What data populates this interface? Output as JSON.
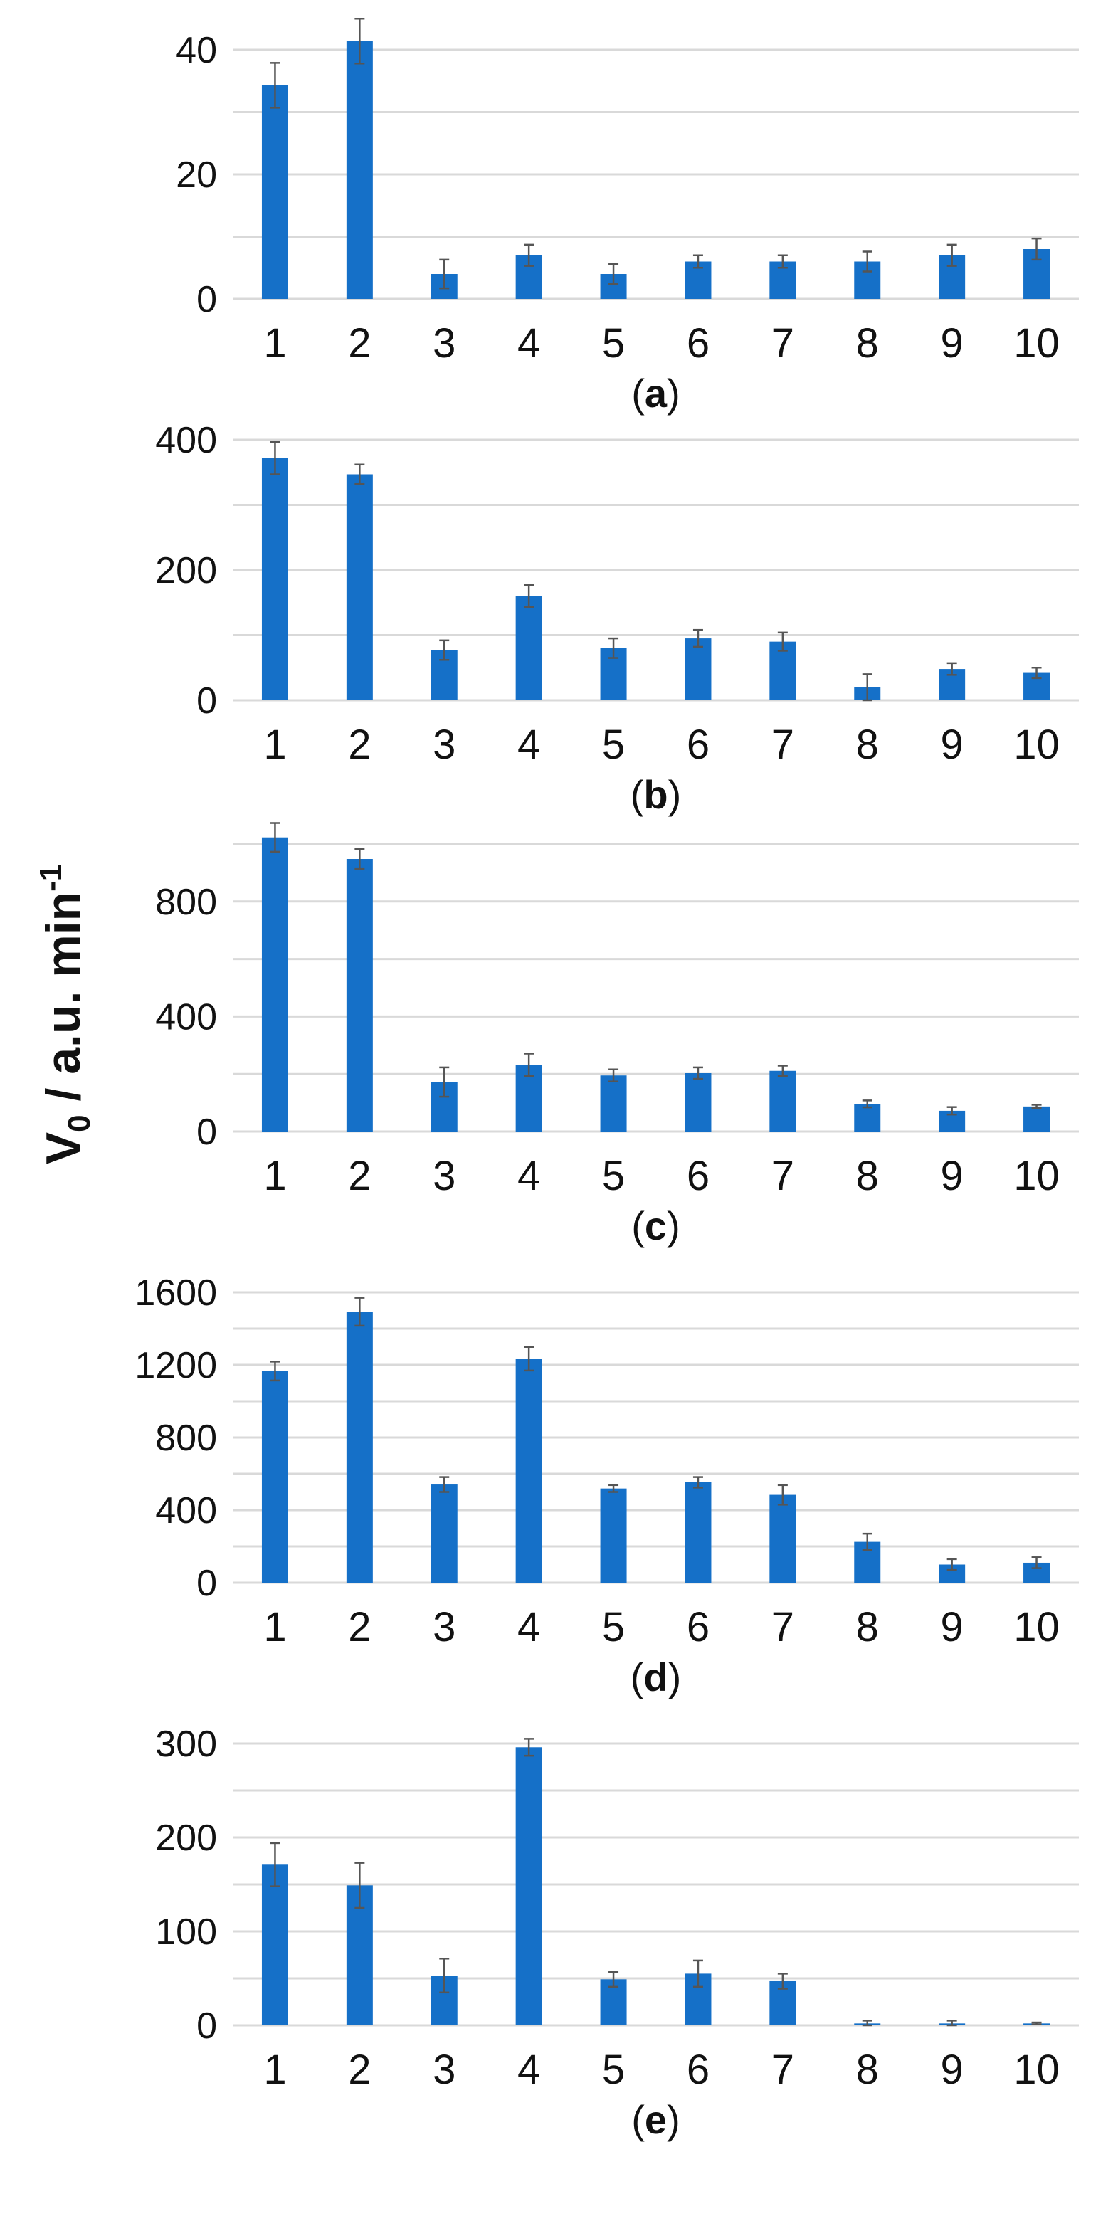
{
  "chart_data": {
    "type": "bar",
    "ylabel": {
      "main": "V",
      "sub": "0",
      "rest": " / a.u. min",
      "sup": "-1"
    },
    "bar_color": "#1570C8",
    "grid_color": "#D9D9D9",
    "error_bar_color": "#555555",
    "grid": true,
    "categories": [
      "1",
      "2",
      "3",
      "4",
      "5",
      "6",
      "7",
      "8",
      "9",
      "10"
    ],
    "panels": [
      {
        "label_open": "(",
        "label": "a",
        "label_close": ")",
        "ylim": [
          0,
          40
        ],
        "grid_step": 10,
        "ticks": [
          0,
          20,
          40
        ],
        "values": [
          34.3,
          41.4,
          4.0,
          7.0,
          4.0,
          6.0,
          6.0,
          6.0,
          7.0,
          8.0
        ],
        "errors": [
          3.6,
          3.6,
          2.3,
          1.7,
          1.6,
          1.0,
          1.0,
          1.6,
          1.7,
          1.7
        ]
      },
      {
        "label_open": "(",
        "label": "b",
        "label_close": ")",
        "ylim": [
          0,
          400
        ],
        "grid_step": 100,
        "ticks": [
          0,
          200,
          400
        ],
        "values": [
          372,
          347,
          77,
          160,
          80,
          95,
          90,
          20,
          48,
          42
        ],
        "errors": [
          25,
          15,
          15,
          17,
          15,
          13,
          14,
          20,
          9,
          8
        ]
      },
      {
        "label_open": "(",
        "label": "c",
        "label_close": ")",
        "ylim": [
          0,
          1000
        ],
        "grid_step": 200,
        "ticks": [
          0,
          400,
          800
        ],
        "values": [
          1023,
          948,
          172,
          232,
          195,
          203,
          211,
          96,
          72,
          87
        ],
        "errors": [
          50,
          35,
          51,
          39,
          21,
          20,
          18,
          12,
          13,
          6
        ]
      },
      {
        "label_open": "(",
        "label": "d",
        "label_close": ")",
        "ylim": [
          0,
          1600
        ],
        "grid_step": 200,
        "ticks": [
          0,
          400,
          800,
          1200,
          1600
        ],
        "values": [
          1166,
          1493,
          541,
          1234,
          519,
          553,
          484,
          225,
          100,
          110
        ],
        "errors": [
          52,
          77,
          41,
          65,
          19,
          29,
          54,
          45,
          30,
          30
        ]
      },
      {
        "label_open": "(",
        "label": "e",
        "label_close": ")",
        "ylim": [
          0,
          300
        ],
        "grid_step": 50,
        "ticks": [
          0,
          100,
          200,
          300
        ],
        "values": [
          171,
          149,
          53,
          296,
          49,
          55,
          47,
          2,
          2,
          2
        ],
        "errors": [
          23,
          24,
          18,
          9,
          8,
          14,
          8,
          3,
          3,
          1
        ]
      }
    ]
  }
}
